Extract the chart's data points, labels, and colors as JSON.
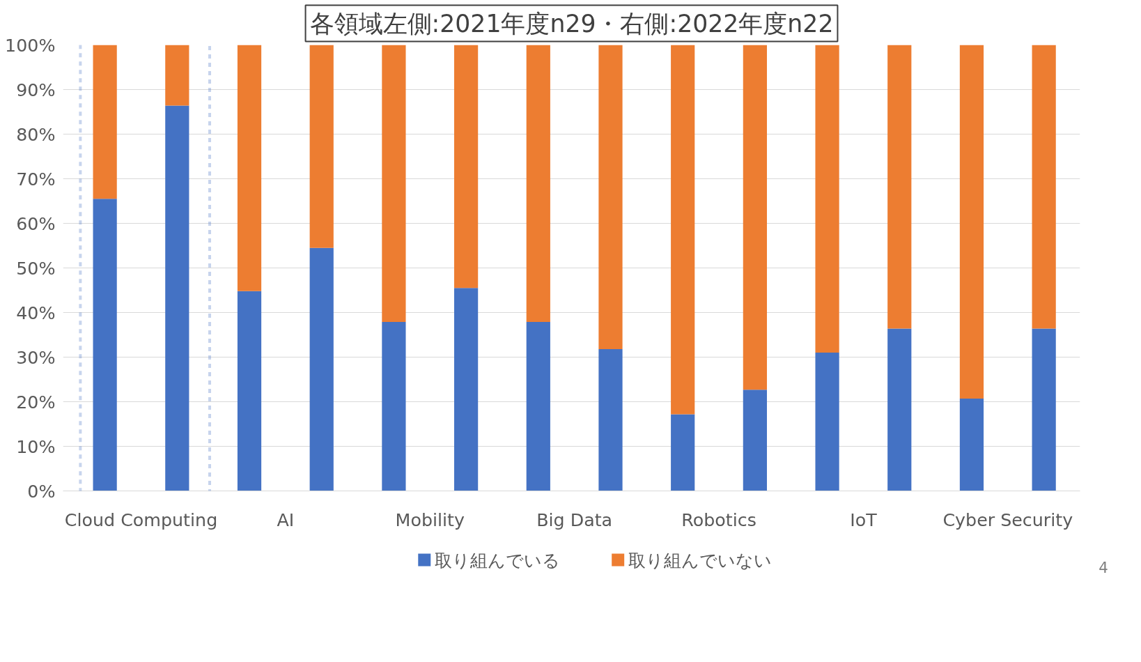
{
  "chart_data": {
    "type": "bar",
    "title": "各領域左側:2021年度n29・右側:2022年度n22",
    "categories": [
      "Cloud Computing",
      null,
      "AI",
      null,
      "Mobility",
      null,
      "Big Data",
      null,
      "Robotics",
      null,
      "IoT",
      null,
      "Cyber Security",
      null
    ],
    "ylim": [
      0,
      100
    ],
    "yticks": [
      {
        "value": 0,
        "label": "0%"
      },
      {
        "value": 10,
        "label": "10%"
      },
      {
        "value": 20,
        "label": "20%"
      },
      {
        "value": 30,
        "label": "30%"
      },
      {
        "value": 40,
        "label": "40%"
      },
      {
        "value": 50,
        "label": "50%"
      },
      {
        "value": 60,
        "label": "60%"
      },
      {
        "value": 70,
        "label": "70%"
      },
      {
        "value": 80,
        "label": "80%"
      },
      {
        "value": 90,
        "label": "90%"
      },
      {
        "value": 100,
        "label": "100%"
      }
    ],
    "stacked": true,
    "series": [
      {
        "name": "取り組んでいる",
        "color": "#4472c4",
        "values": [
          65.5,
          86.4,
          44.8,
          54.5,
          37.9,
          45.5,
          37.9,
          31.8,
          17.2,
          22.7,
          31.0,
          36.4,
          20.7,
          36.4
        ]
      },
      {
        "name": "取り組んでいない",
        "color": "#ed7d31",
        "values": [
          34.5,
          13.6,
          55.2,
          45.5,
          62.1,
          54.5,
          62.1,
          68.2,
          82.8,
          77.3,
          69.0,
          63.6,
          79.3,
          63.6
        ]
      }
    ],
    "grid": "y",
    "legend": "bottom",
    "annotations": [
      "4"
    ]
  }
}
